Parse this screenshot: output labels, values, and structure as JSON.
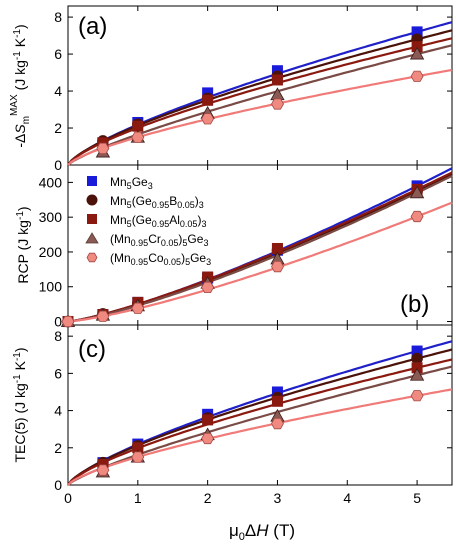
{
  "chart_data": [
    {
      "type": "scatter",
      "panel_label": "(a)",
      "ylabel": "-ΔS_m^MAX (J kg^-1 K^-1)",
      "ylim": [
        0,
        8.6
      ],
      "yticks": [
        0,
        2,
        4,
        6,
        8
      ],
      "xlim": [
        0,
        5.5
      ],
      "grid": false,
      "legend": null,
      "series": [
        {
          "name": "Mn5Ge3",
          "color": "#1a1adb",
          "line_color": "#2020c8",
          "marker": "square",
          "x": [
            0.5,
            1,
            2,
            3,
            5
          ],
          "y": [
            1.2,
            2.3,
            3.9,
            5.1,
            7.2
          ],
          "fit_exponent": 0.74
        },
        {
          "name": "Mn5(Ge0.95B0.05)3",
          "color": "#4a1208",
          "line_color": "#4a1208",
          "marker": "circle",
          "x": [
            0.5,
            1,
            2,
            3,
            5
          ],
          "y": [
            1.3,
            2.2,
            3.6,
            4.8,
            6.8
          ],
          "fit_exponent": 0.72
        },
        {
          "name": "Mn5(Ge0.95Al0.05)3",
          "color": "#8a1a10",
          "line_color": "#8a1a10",
          "marker": "square",
          "x": [
            0.5,
            1,
            2,
            3,
            5
          ],
          "y": [
            1.2,
            2.1,
            3.5,
            4.6,
            6.4
          ],
          "fit_exponent": 0.72
        },
        {
          "name": "(Mn0.95Cr0.05)5Ge3",
          "color": "#8a5a55",
          "line_color": "#7a4a45",
          "marker": "triangle",
          "x": [
            0.5,
            1,
            2,
            3,
            5
          ],
          "y": [
            0.7,
            1.5,
            2.8,
            3.8,
            6.0
          ],
          "fit_exponent": 0.8
        },
        {
          "name": "(Mn0.95Co0.05)5Ge3",
          "color": "#f08a80",
          "line_color": "#f07a78",
          "marker": "hexagon",
          "x": [
            0.5,
            1,
            2,
            3,
            5
          ],
          "y": [
            0.9,
            1.5,
            2.5,
            3.3,
            4.8
          ],
          "fit_exponent": 0.72
        }
      ]
    },
    {
      "type": "scatter",
      "panel_label": "(b)",
      "ylabel": "RCP (J kg^-1)",
      "ylim": [
        -10,
        450
      ],
      "yticks": [
        0,
        100,
        200,
        300,
        400
      ],
      "xlim": [
        0,
        5.5
      ],
      "grid": false,
      "legend": "top-left",
      "series": [
        {
          "name": "Mn5Ge3",
          "color": "#1a1adb",
          "line_color": "#2020c8",
          "marker": "square",
          "x": [
            0,
            0.5,
            1,
            2,
            3,
            5
          ],
          "y": [
            0,
            20,
            55,
            125,
            205,
            390
          ],
          "fit_exponent": 1.28
        },
        {
          "name": "Mn5(Ge0.95B0.05)3",
          "color": "#4a1208",
          "line_color": "#4a1208",
          "marker": "circle",
          "x": [
            0,
            0.5,
            1,
            2,
            3,
            5
          ],
          "y": [
            0,
            22,
            52,
            125,
            205,
            375
          ],
          "fit_exponent": 1.26
        },
        {
          "name": "Mn5(Ge0.95Al0.05)3",
          "color": "#8a1a10",
          "line_color": "#8a1a10",
          "marker": "square",
          "x": [
            0,
            0.5,
            1,
            2,
            3,
            5
          ],
          "y": [
            0,
            20,
            55,
            128,
            210,
            380
          ],
          "fit_exponent": 1.26
        },
        {
          "name": "(Mn0.95Cr0.05)5Ge3",
          "color": "#8a5a55",
          "line_color": "#7a4a45",
          "marker": "triangle",
          "x": [
            0,
            0.5,
            1,
            2,
            3,
            5
          ],
          "y": [
            0,
            18,
            45,
            110,
            180,
            370
          ],
          "fit_exponent": 1.3
        },
        {
          "name": "(Mn0.95Co0.05)5Ge3",
          "color": "#f08a80",
          "line_color": "#f07a78",
          "marker": "hexagon",
          "x": [
            0,
            0.5,
            1,
            2,
            3,
            5
          ],
          "y": [
            0,
            15,
            38,
            98,
            158,
            302
          ],
          "fit_exponent": 1.3
        }
      ]
    },
    {
      "type": "scatter",
      "panel_label": "(c)",
      "ylabel": "TEC(5) (J kg^-1 K^-1)",
      "ylim": [
        0,
        8.6
      ],
      "yticks": [
        0,
        2,
        4,
        6,
        8
      ],
      "xlim": [
        0,
        5.5
      ],
      "xticks": [
        0,
        1,
        2,
        3,
        4,
        5
      ],
      "xlabel": "μ0ΔH (T)",
      "grid": false,
      "legend": null,
      "series": [
        {
          "name": "Mn5Ge3",
          "color": "#1a1adb",
          "line_color": "#2020c8",
          "marker": "square",
          "x": [
            0.5,
            1,
            2,
            3,
            5
          ],
          "y": [
            1.2,
            2.2,
            3.8,
            5.0,
            7.2
          ],
          "fit_exponent": 0.74
        },
        {
          "name": "Mn5(Ge0.95B0.05)3",
          "color": "#4a1208",
          "line_color": "#4a1208",
          "marker": "circle",
          "x": [
            0.5,
            1,
            2,
            3,
            5
          ],
          "y": [
            1.2,
            2.1,
            3.6,
            4.7,
            6.8
          ],
          "fit_exponent": 0.72
        },
        {
          "name": "Mn5(Ge0.95Al0.05)3",
          "color": "#8a1a10",
          "line_color": "#8a1a10",
          "marker": "square",
          "x": [
            0.5,
            1,
            2,
            3,
            5
          ],
          "y": [
            1.1,
            2.0,
            3.5,
            4.5,
            6.3
          ],
          "fit_exponent": 0.72
        },
        {
          "name": "(Mn0.95Cr0.05)5Ge3",
          "color": "#8a5a55",
          "line_color": "#7a4a45",
          "marker": "triangle",
          "x": [
            0.5,
            1,
            2,
            3,
            5
          ],
          "y": [
            0.7,
            1.5,
            2.7,
            3.7,
            5.9
          ],
          "fit_exponent": 0.8
        },
        {
          "name": "(Mn0.95Co0.05)5Ge3",
          "color": "#f08a80",
          "line_color": "#f07a78",
          "marker": "hexagon",
          "x": [
            0.5,
            1,
            2,
            3,
            5
          ],
          "y": [
            0.8,
            1.5,
            2.5,
            3.3,
            4.8
          ],
          "fit_exponent": 0.72
        }
      ]
    }
  ]
}
